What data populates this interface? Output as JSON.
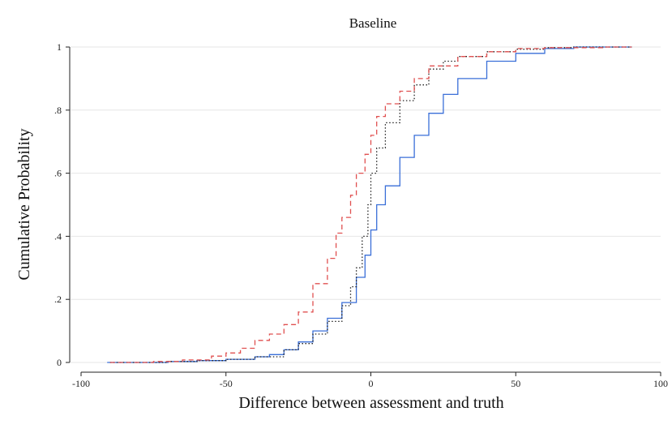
{
  "chart_data": {
    "type": "line",
    "title": "Baseline",
    "xlabel": "Difference between assessment and truth",
    "ylabel": "Cumulative Probability",
    "xlim": [
      -100,
      100
    ],
    "ylim": [
      0,
      1
    ],
    "xticks": [
      -100,
      -50,
      0,
      50,
      100
    ],
    "xtick_labels": [
      "-100",
      "-50",
      "0",
      "50",
      "100"
    ],
    "yticks": [
      0,
      0.2,
      0.4,
      0.6,
      0.8,
      1
    ],
    "ytick_labels": [
      "0",
      ".2",
      ".4",
      ".6",
      ".8",
      "1"
    ],
    "grid": "horizontal",
    "legend": "none",
    "series": [
      {
        "color": "#3a6fd8",
        "dash": "solid",
        "points": [
          [
            -91,
            0
          ],
          [
            -70,
            0.003
          ],
          [
            -60,
            0.006
          ],
          [
            -50,
            0.01
          ],
          [
            -40,
            0.018
          ],
          [
            -35,
            0.025
          ],
          [
            -30,
            0.04
          ],
          [
            -25,
            0.065
          ],
          [
            -20,
            0.1
          ],
          [
            -15,
            0.14
          ],
          [
            -10,
            0.19
          ],
          [
            -5,
            0.27
          ],
          [
            -2,
            0.34
          ],
          [
            0,
            0.42
          ],
          [
            2,
            0.5
          ],
          [
            5,
            0.56
          ],
          [
            10,
            0.65
          ],
          [
            15,
            0.72
          ],
          [
            20,
            0.79
          ],
          [
            25,
            0.85
          ],
          [
            30,
            0.9
          ],
          [
            40,
            0.955
          ],
          [
            50,
            0.98
          ],
          [
            60,
            0.995
          ],
          [
            70,
            1.0
          ],
          [
            90,
            1.0
          ]
        ]
      },
      {
        "color": "#222222",
        "dash": "dot",
        "points": [
          [
            -90,
            0
          ],
          [
            -70,
            0.003
          ],
          [
            -60,
            0.006
          ],
          [
            -50,
            0.01
          ],
          [
            -40,
            0.018
          ],
          [
            -30,
            0.04
          ],
          [
            -25,
            0.06
          ],
          [
            -20,
            0.09
          ],
          [
            -15,
            0.13
          ],
          [
            -10,
            0.18
          ],
          [
            -7,
            0.24
          ],
          [
            -5,
            0.3
          ],
          [
            -3,
            0.4
          ],
          [
            -1,
            0.5
          ],
          [
            0,
            0.6
          ],
          [
            2,
            0.68
          ],
          [
            5,
            0.76
          ],
          [
            10,
            0.83
          ],
          [
            15,
            0.88
          ],
          [
            20,
            0.93
          ],
          [
            25,
            0.955
          ],
          [
            30,
            0.97
          ],
          [
            40,
            0.985
          ],
          [
            50,
            0.993
          ],
          [
            60,
            0.998
          ],
          [
            70,
            1.0
          ],
          [
            90,
            1.0
          ]
        ]
      },
      {
        "color": "#e05050",
        "dash": "dash",
        "points": [
          [
            -90,
            0
          ],
          [
            -75,
            0.003
          ],
          [
            -65,
            0.008
          ],
          [
            -55,
            0.02
          ],
          [
            -50,
            0.03
          ],
          [
            -45,
            0.045
          ],
          [
            -40,
            0.07
          ],
          [
            -35,
            0.09
          ],
          [
            -30,
            0.12
          ],
          [
            -25,
            0.16
          ],
          [
            -20,
            0.25
          ],
          [
            -15,
            0.33
          ],
          [
            -12,
            0.41
          ],
          [
            -10,
            0.46
          ],
          [
            -7,
            0.53
          ],
          [
            -5,
            0.6
          ],
          [
            -2,
            0.66
          ],
          [
            0,
            0.72
          ],
          [
            2,
            0.78
          ],
          [
            5,
            0.82
          ],
          [
            10,
            0.86
          ],
          [
            15,
            0.9
          ],
          [
            20,
            0.94
          ],
          [
            30,
            0.97
          ],
          [
            40,
            0.985
          ],
          [
            50,
            0.995
          ],
          [
            60,
            0.998
          ],
          [
            80,
            1.0
          ],
          [
            90,
            1.0
          ]
        ]
      }
    ]
  }
}
